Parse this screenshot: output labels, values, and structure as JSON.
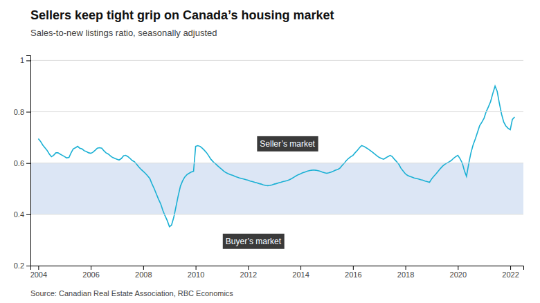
{
  "chart_data": {
    "type": "line",
    "title": "Sellers keep tight grip on Canada’s housing market",
    "subtitle": "Sales-to-new listings ratio, seasonally adjusted",
    "source": "Source: Canadian Real Estate Association, RBC Economics",
    "color": "#1ab0d4",
    "grid": true,
    "xlim": [
      2003.7,
      2022.5
    ],
    "xticks": [
      2004,
      2006,
      2008,
      2010,
      2012,
      2014,
      2016,
      2018,
      2020,
      2022
    ],
    "ylim": [
      0.2,
      1.02
    ],
    "yticks": [
      0.2,
      0.4,
      0.6,
      0.8,
      1
    ],
    "bands": [
      {
        "from": 0.4,
        "to": 0.6,
        "color": "#dce6f5"
      }
    ],
    "annotations": [
      {
        "text": "Seller’s market",
        "x": 2013.5,
        "y": 0.675
      },
      {
        "text": "Buyer’s market",
        "x": 2012.2,
        "y": 0.295
      }
    ],
    "x": [
      2004.0,
      2004.08,
      2004.17,
      2004.25,
      2004.33,
      2004.42,
      2004.5,
      2004.58,
      2004.67,
      2004.75,
      2004.83,
      2004.92,
      2005.0,
      2005.08,
      2005.17,
      2005.25,
      2005.33,
      2005.42,
      2005.5,
      2005.58,
      2005.67,
      2005.75,
      2005.83,
      2005.92,
      2006.0,
      2006.08,
      2006.17,
      2006.25,
      2006.33,
      2006.42,
      2006.5,
      2006.58,
      2006.67,
      2006.75,
      2006.83,
      2006.92,
      2007.0,
      2007.08,
      2007.17,
      2007.25,
      2007.33,
      2007.42,
      2007.5,
      2007.58,
      2007.67,
      2007.75,
      2007.83,
      2007.92,
      2008.0,
      2008.08,
      2008.17,
      2008.25,
      2008.33,
      2008.42,
      2008.5,
      2008.58,
      2008.67,
      2008.75,
      2008.83,
      2008.92,
      2009.0,
      2009.08,
      2009.17,
      2009.25,
      2009.33,
      2009.42,
      2009.5,
      2009.58,
      2009.67,
      2009.75,
      2009.83,
      2009.92,
      2010.0,
      2010.08,
      2010.17,
      2010.25,
      2010.33,
      2010.42,
      2010.5,
      2010.58,
      2010.67,
      2010.75,
      2010.83,
      2010.92,
      2011.0,
      2011.08,
      2011.17,
      2011.25,
      2011.33,
      2011.42,
      2011.5,
      2011.58,
      2011.67,
      2011.75,
      2011.83,
      2011.92,
      2012.0,
      2012.08,
      2012.17,
      2012.25,
      2012.33,
      2012.42,
      2012.5,
      2012.58,
      2012.67,
      2012.75,
      2012.83,
      2012.92,
      2013.0,
      2013.08,
      2013.17,
      2013.25,
      2013.33,
      2013.42,
      2013.5,
      2013.58,
      2013.67,
      2013.75,
      2013.83,
      2013.92,
      2014.0,
      2014.08,
      2014.17,
      2014.25,
      2014.33,
      2014.42,
      2014.5,
      2014.58,
      2014.67,
      2014.75,
      2014.83,
      2014.92,
      2015.0,
      2015.08,
      2015.17,
      2015.25,
      2015.33,
      2015.42,
      2015.5,
      2015.58,
      2015.67,
      2015.75,
      2015.83,
      2015.92,
      2016.0,
      2016.08,
      2016.17,
      2016.25,
      2016.33,
      2016.42,
      2016.5,
      2016.58,
      2016.67,
      2016.75,
      2016.83,
      2016.92,
      2017.0,
      2017.08,
      2017.17,
      2017.25,
      2017.33,
      2017.42,
      2017.5,
      2017.58,
      2017.67,
      2017.75,
      2017.83,
      2017.92,
      2018.0,
      2018.08,
      2018.17,
      2018.25,
      2018.33,
      2018.42,
      2018.5,
      2018.58,
      2018.67,
      2018.75,
      2018.83,
      2018.92,
      2019.0,
      2019.08,
      2019.17,
      2019.25,
      2019.33,
      2019.42,
      2019.5,
      2019.58,
      2019.67,
      2019.75,
      2019.83,
      2019.92,
      2020.0,
      2020.08,
      2020.17,
      2020.25,
      2020.33,
      2020.42,
      2020.5,
      2020.58,
      2020.67,
      2020.75,
      2020.83,
      2020.92,
      2021.0,
      2021.08,
      2021.17,
      2021.25,
      2021.33,
      2021.42,
      2021.5,
      2021.58,
      2021.67,
      2021.75,
      2021.83,
      2021.92,
      2022.0,
      2022.08,
      2022.17
    ],
    "values": [
      0.695,
      0.685,
      0.67,
      0.66,
      0.65,
      0.635,
      0.625,
      0.63,
      0.64,
      0.64,
      0.635,
      0.63,
      0.625,
      0.62,
      0.622,
      0.64,
      0.655,
      0.66,
      0.665,
      0.658,
      0.655,
      0.648,
      0.645,
      0.64,
      0.638,
      0.642,
      0.65,
      0.658,
      0.66,
      0.658,
      0.648,
      0.64,
      0.635,
      0.628,
      0.622,
      0.618,
      0.615,
      0.612,
      0.618,
      0.628,
      0.63,
      0.625,
      0.618,
      0.61,
      0.605,
      0.595,
      0.585,
      0.575,
      0.568,
      0.56,
      0.55,
      0.54,
      0.52,
      0.5,
      0.48,
      0.46,
      0.44,
      0.415,
      0.395,
      0.375,
      0.352,
      0.358,
      0.39,
      0.43,
      0.47,
      0.51,
      0.53,
      0.545,
      0.555,
      0.56,
      0.565,
      0.568,
      0.665,
      0.668,
      0.665,
      0.658,
      0.65,
      0.64,
      0.628,
      0.615,
      0.605,
      0.598,
      0.59,
      0.582,
      0.575,
      0.568,
      0.562,
      0.558,
      0.555,
      0.552,
      0.548,
      0.545,
      0.542,
      0.54,
      0.538,
      0.535,
      0.533,
      0.53,
      0.528,
      0.525,
      0.523,
      0.52,
      0.518,
      0.515,
      0.513,
      0.512,
      0.513,
      0.515,
      0.518,
      0.52,
      0.523,
      0.525,
      0.528,
      0.53,
      0.532,
      0.535,
      0.54,
      0.545,
      0.55,
      0.555,
      0.558,
      0.562,
      0.565,
      0.568,
      0.57,
      0.572,
      0.573,
      0.572,
      0.57,
      0.568,
      0.565,
      0.562,
      0.56,
      0.562,
      0.565,
      0.568,
      0.572,
      0.575,
      0.58,
      0.59,
      0.6,
      0.61,
      0.618,
      0.625,
      0.63,
      0.64,
      0.65,
      0.66,
      0.668,
      0.665,
      0.66,
      0.655,
      0.648,
      0.642,
      0.635,
      0.628,
      0.622,
      0.618,
      0.615,
      0.62,
      0.625,
      0.63,
      0.625,
      0.615,
      0.605,
      0.595,
      0.58,
      0.568,
      0.558,
      0.552,
      0.548,
      0.545,
      0.542,
      0.54,
      0.538,
      0.535,
      0.533,
      0.53,
      0.528,
      0.525,
      0.538,
      0.548,
      0.558,
      0.568,
      0.578,
      0.588,
      0.595,
      0.6,
      0.605,
      0.61,
      0.618,
      0.625,
      0.63,
      0.618,
      0.6,
      0.57,
      0.548,
      0.6,
      0.64,
      0.67,
      0.695,
      0.72,
      0.745,
      0.76,
      0.775,
      0.8,
      0.82,
      0.84,
      0.87,
      0.9,
      0.88,
      0.835,
      0.79,
      0.76,
      0.745,
      0.735,
      0.73,
      0.77,
      0.78
    ]
  }
}
